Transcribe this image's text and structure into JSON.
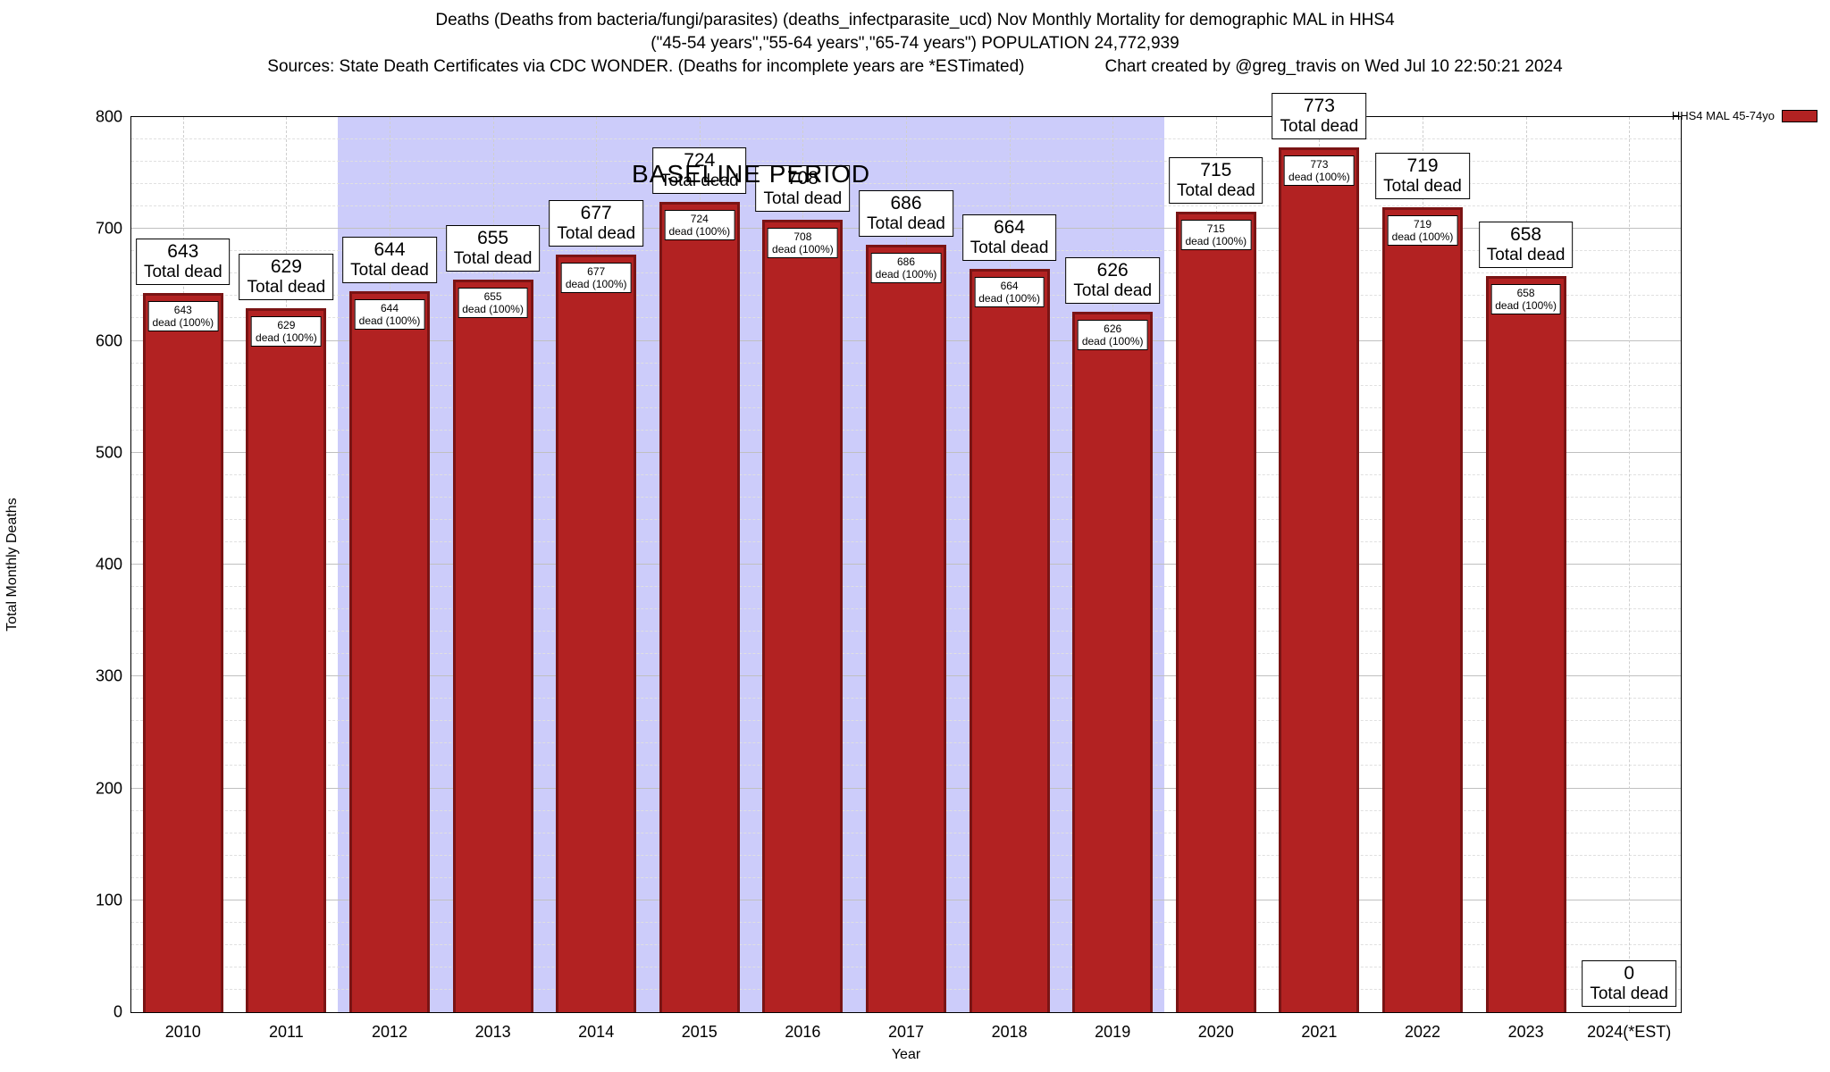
{
  "header": {
    "line1": "Deaths (Deaths from bacteria/fungi/parasites) (deaths_infectparasite_ucd) Nov Monthly Mortality for demographic MAL in HHS4",
    "line2": "(\"45-54 years\",\"55-64 years\",\"65-74 years\") POPULATION 24,772,939",
    "line3_left": "Sources: State Death Certificates via CDC WONDER. (Deaths for incomplete years are *ESTimated)",
    "line3_right": "Chart created by @greg_travis on Wed Jul 10 22:50:21 2024"
  },
  "legend": {
    "label": "HHS4 MAL 45-74yo",
    "color": "#b22222"
  },
  "chart_data": {
    "type": "bar",
    "title": "Deaths (Deaths from bacteria/fungi/parasites) (deaths_infectparasite_ucd) Nov Monthly Mortality for demographic MAL in HHS4",
    "xlabel": "Year",
    "ylabel": "Total Monthly Deaths",
    "ylim": [
      0,
      800
    ],
    "yticks": [
      0,
      100,
      200,
      300,
      400,
      500,
      600,
      700,
      800
    ],
    "y_minor_step": 20,
    "grid": true,
    "categories": [
      "2010",
      "2011",
      "2012",
      "2013",
      "2014",
      "2015",
      "2016",
      "2017",
      "2018",
      "2019",
      "2020",
      "2021",
      "2022",
      "2023",
      "2024(*EST)"
    ],
    "values": [
      643,
      629,
      644,
      655,
      677,
      724,
      708,
      686,
      664,
      626,
      715,
      773,
      719,
      658,
      0
    ],
    "bar_color": "#b22222",
    "bar_border_color": "#7a1414",
    "annotations": {
      "top_label": "Total dead",
      "inner_label": "dead (100%)"
    },
    "baseline_period": {
      "label": "BASELINE PERIOD",
      "start_index": 2,
      "end_index": 9,
      "color": "#ccccfa"
    },
    "legend_position": "top-right"
  }
}
